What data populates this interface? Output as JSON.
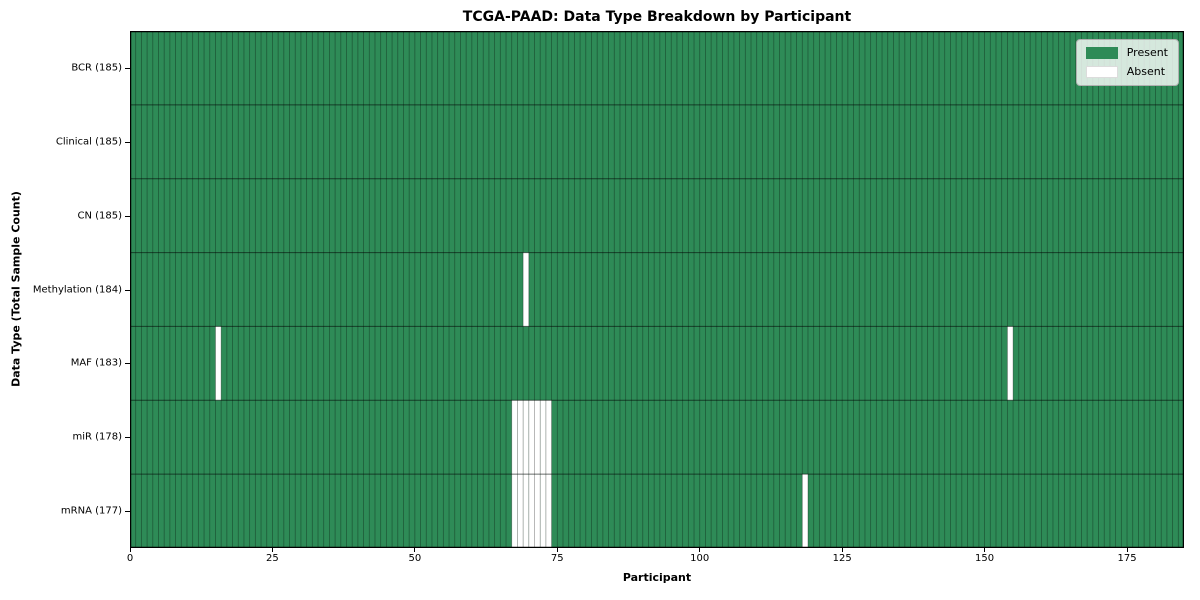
{
  "chart_data": {
    "type": "heatmap",
    "title": "TCGA-PAAD: Data Type Breakdown by Participant",
    "xlabel": "Participant",
    "ylabel": "Data Type (Total Sample Count)",
    "x_range": [
      0,
      185
    ],
    "x_ticks": [
      0,
      25,
      50,
      75,
      100,
      125,
      150,
      175
    ],
    "n_participants": 185,
    "grid": "cell-borders",
    "legend_position": "upper right",
    "colors": {
      "present": "#2e8b57",
      "absent": "#ffffff",
      "cell_edge": "rgba(0,0,0,0.35)",
      "row_divider": "rgba(0,0,0,0.55)",
      "plot_border": "#000000"
    },
    "legend": {
      "items": [
        {
          "label": "Present",
          "color": "#2e8b57"
        },
        {
          "label": "Absent",
          "color": "#ffffff"
        }
      ]
    },
    "rows": [
      {
        "label": "BCR (185)",
        "data_type": "BCR",
        "total_samples": 185,
        "absent_participants": []
      },
      {
        "label": "Clinical (185)",
        "data_type": "Clinical",
        "total_samples": 185,
        "absent_participants": []
      },
      {
        "label": "CN (185)",
        "data_type": "CN",
        "total_samples": 185,
        "absent_participants": []
      },
      {
        "label": "Methylation (184)",
        "data_type": "Methylation",
        "total_samples": 184,
        "absent_participants": [
          69
        ]
      },
      {
        "label": "MAF (183)",
        "data_type": "MAF",
        "total_samples": 183,
        "absent_participants": [
          15,
          154
        ]
      },
      {
        "label": "miR (178)",
        "data_type": "miR",
        "total_samples": 178,
        "absent_participants": [
          67,
          68,
          69,
          70,
          71,
          72,
          73
        ]
      },
      {
        "label": "mRNA (177)",
        "data_type": "mRNA",
        "total_samples": 177,
        "absent_participants": [
          67,
          68,
          69,
          70,
          71,
          72,
          73,
          118
        ]
      }
    ]
  }
}
